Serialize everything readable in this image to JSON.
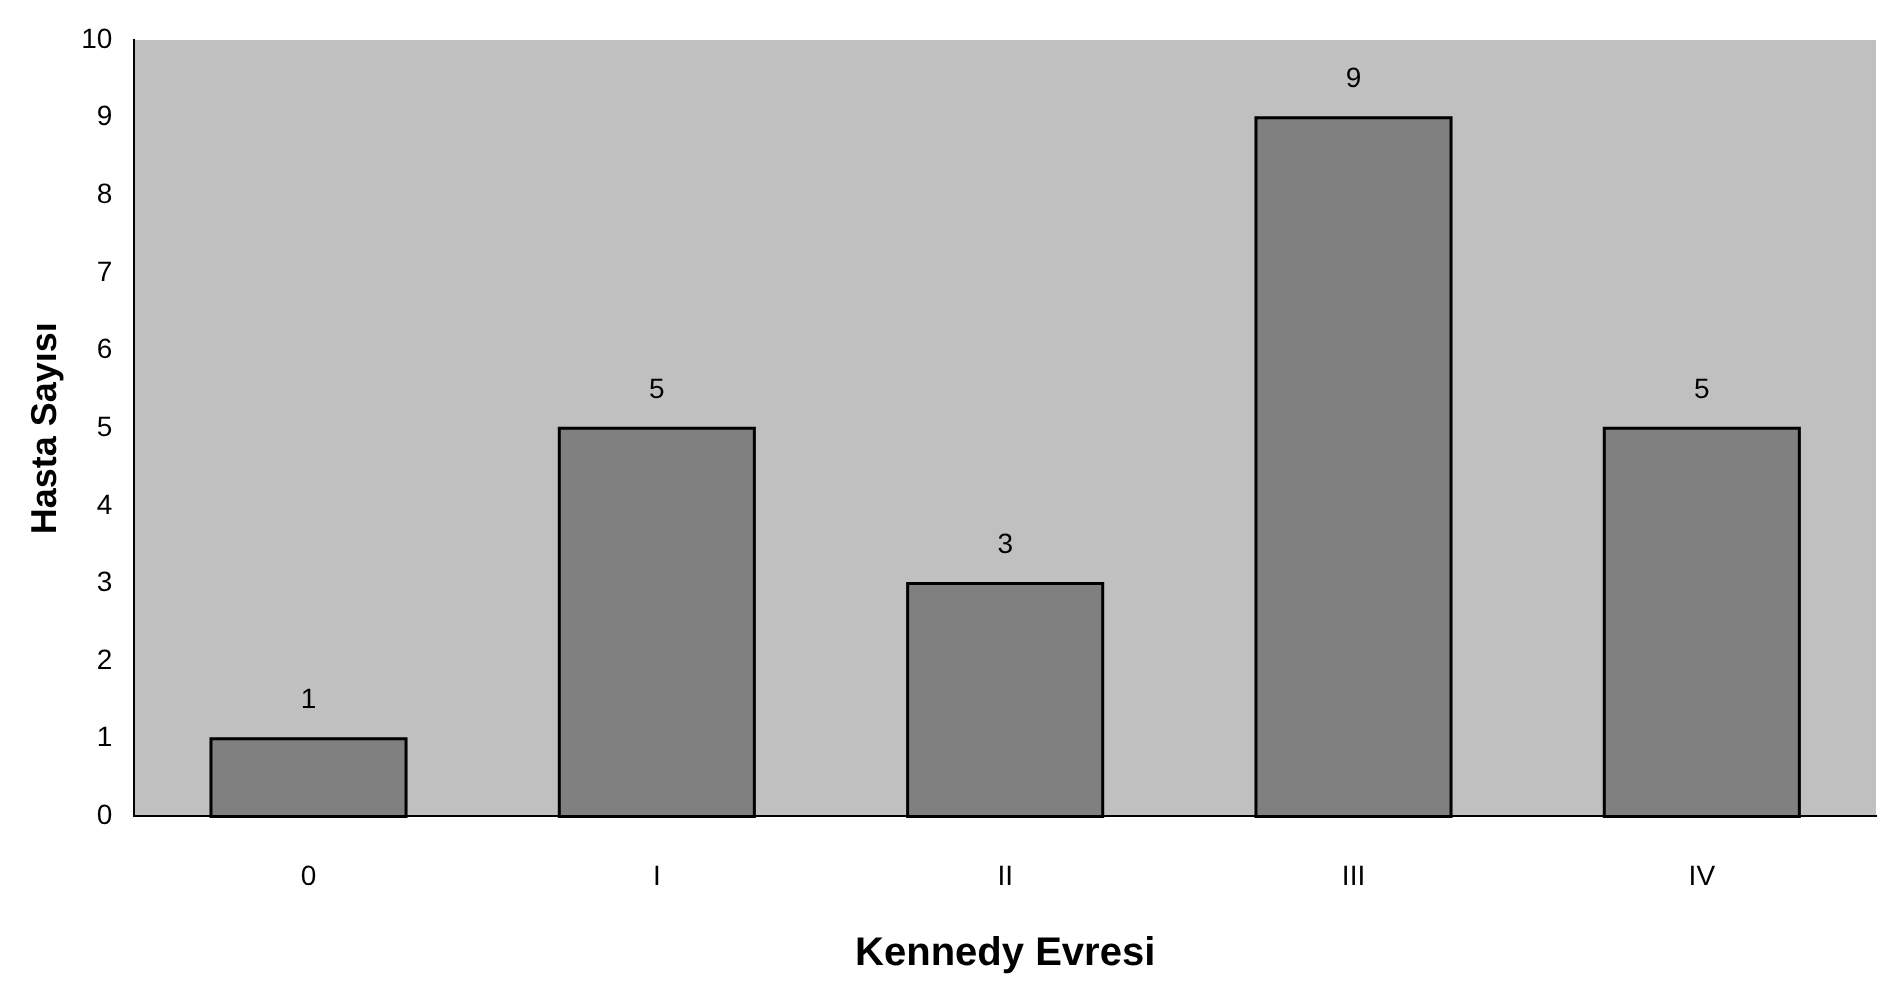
{
  "chart_data": {
    "type": "bar",
    "xlabel": "Kennedy Evresi",
    "ylabel": "Hasta Sayısı",
    "categories": [
      "0",
      "I",
      "II",
      "III",
      "IV"
    ],
    "values": [
      1,
      5,
      3,
      9,
      5
    ],
    "color": "#808080",
    "ylim": [
      0,
      10
    ],
    "yticks": [
      0,
      1,
      2,
      3,
      4,
      5,
      6,
      7,
      8,
      9,
      10
    ],
    "grid": false,
    "data_labels": true
  }
}
